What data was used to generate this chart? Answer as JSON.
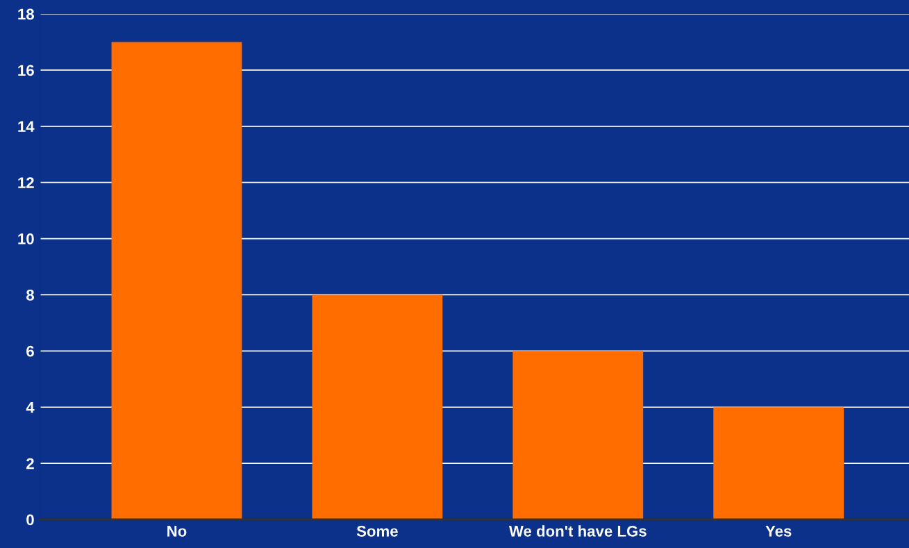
{
  "chart_data": {
    "type": "bar",
    "categories": [
      "No",
      "Some",
      "We don't have LGs",
      "Yes"
    ],
    "values": [
      17,
      8,
      6,
      4
    ],
    "color": "#ff6d00",
    "ylim": [
      0,
      18
    ],
    "yticks": [
      0,
      2,
      4,
      6,
      8,
      10,
      12,
      14,
      16,
      18
    ],
    "grid": "y",
    "legend": false
  }
}
